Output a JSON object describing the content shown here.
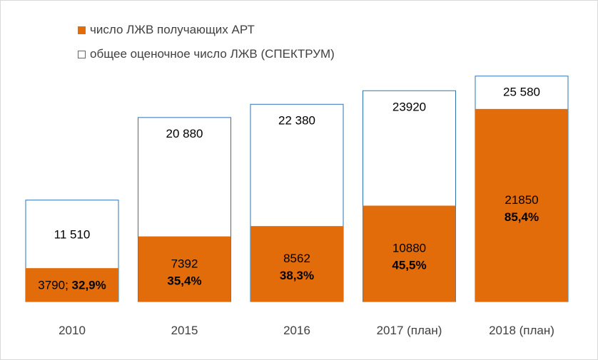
{
  "chart_data": {
    "type": "bar",
    "categories": [
      "2010",
      "2015",
      "2016",
      "2017 (план)",
      "2018 (план)"
    ],
    "series": [
      {
        "name": "число ЛЖВ получающих АРТ",
        "values": [
          3790,
          7392,
          8562,
          10880,
          21850
        ],
        "value_labels": [
          "3790;",
          "7392",
          "8562",
          "10880",
          "21850"
        ],
        "percent_labels": [
          "32,9%",
          "35,4%",
          "38,3%",
          "45,5%",
          "85,4%"
        ]
      },
      {
        "name": "общее оценочное число ЛЖВ (СПЕКТРУМ)",
        "values": [
          11510,
          20880,
          22380,
          23920,
          25580
        ],
        "value_labels": [
          "11 510",
          "20 880",
          "22 380",
          "23920",
          "25 580"
        ]
      }
    ],
    "overlap": true,
    "ylim": [
      0,
      27500
    ],
    "grid": false,
    "legend_position": "top-left",
    "colors": {
      "art": "#e36c0a",
      "total_border": "#2e74b5"
    }
  }
}
